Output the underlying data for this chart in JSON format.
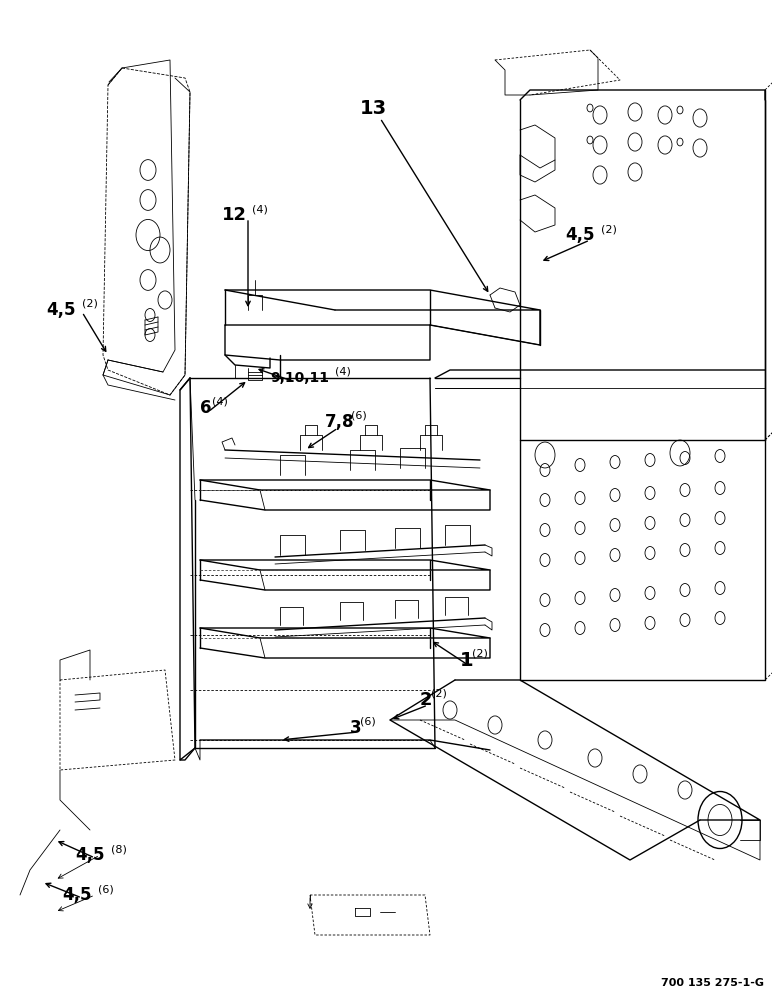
{
  "bg_color": "#ffffff",
  "line_color": "#000000",
  "fig_width": 7.72,
  "fig_height": 10.0,
  "ref_code": "700 135 275-1-G",
  "ref_fontsize": 8
}
